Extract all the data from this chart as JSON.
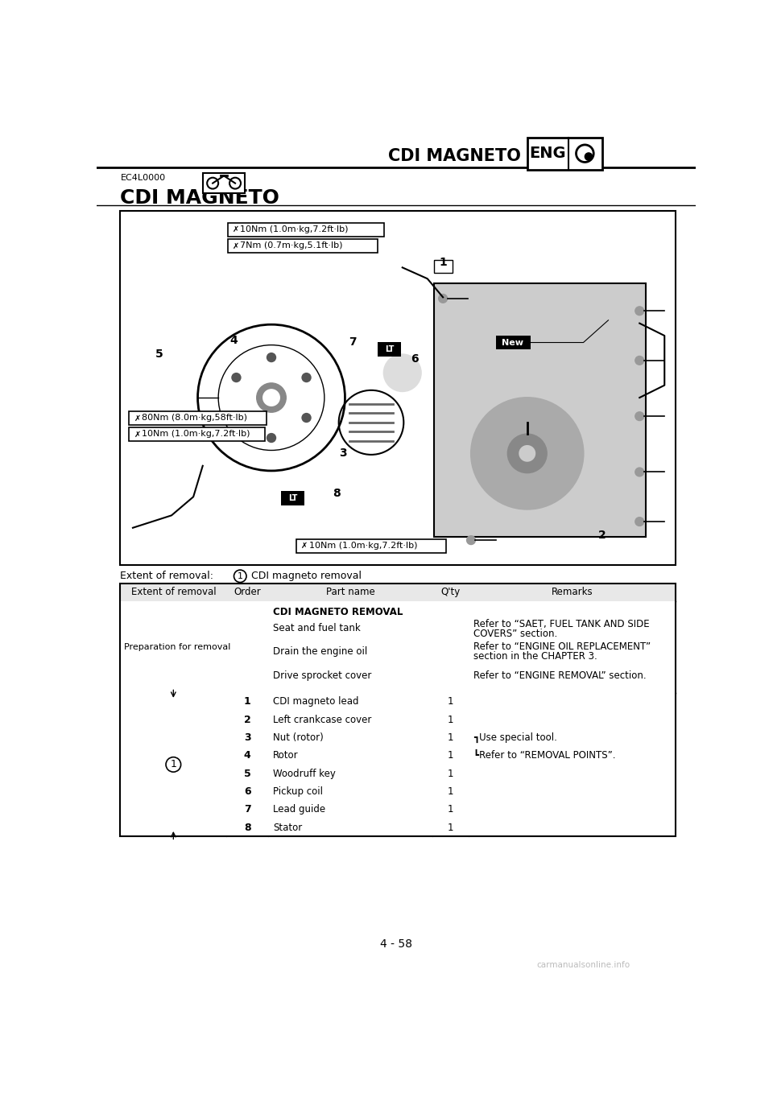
{
  "page_title": "CDI MAGNETO",
  "eng_label": "ENG",
  "section_code": "EC4L0000",
  "section_title": "CDI MAGNETO",
  "page_number": "4 - 58",
  "watermark": "carmanualsonline.info",
  "extent_of_removal_text": "Extent of removal:",
  "extent_circle": "1",
  "extent_desc": "CDI magneto removal",
  "table_headers": [
    "Extent of removal",
    "Order",
    "Part name",
    "Q'ty",
    "Remarks"
  ],
  "removal_rows": [
    {
      "order": "1",
      "part": "CDI magneto lead",
      "qty": "1",
      "remarks": ""
    },
    {
      "order": "2",
      "part": "Left crankcase cover",
      "qty": "1",
      "remarks": ""
    },
    {
      "order": "3",
      "part": "Nut (rotor)",
      "qty": "1",
      "remarks": "┓Use special tool."
    },
    {
      "order": "4",
      "part": "Rotor",
      "qty": "1",
      "remarks": "┗Refer to “REMOVAL POINTS”."
    },
    {
      "order": "5",
      "part": "Woodruff key",
      "qty": "1",
      "remarks": ""
    },
    {
      "order": "6",
      "part": "Pickup coil",
      "qty": "1",
      "remarks": ""
    },
    {
      "order": "7",
      "part": "Lead guide",
      "qty": "1",
      "remarks": ""
    },
    {
      "order": "8",
      "part": "Stator",
      "qty": "1",
      "remarks": ""
    }
  ],
  "bg_color": "#ffffff"
}
